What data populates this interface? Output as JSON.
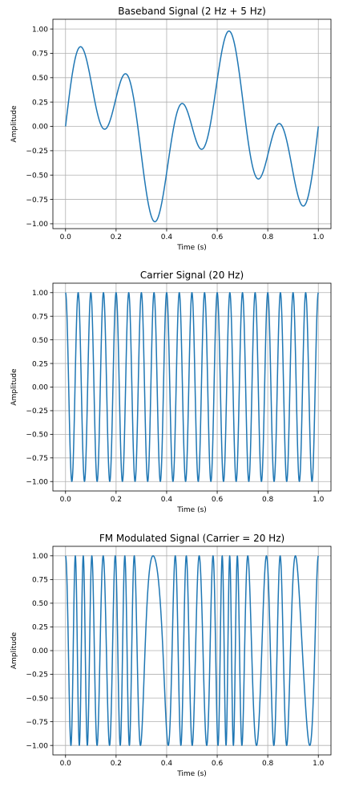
{
  "colors": {
    "series": "#1f77b4",
    "grid": "#b0b0b0"
  },
  "chart_data": [
    {
      "type": "line",
      "title": "Baseband Signal (2 Hz + 5 Hz)",
      "xlabel": "Time (s)",
      "ylabel": "Amplitude",
      "xlim": [
        -0.05,
        1.05
      ],
      "ylim": [
        -1.05,
        1.1
      ],
      "grid": true,
      "x_ticks": [
        0.0,
        0.2,
        0.4,
        0.6,
        0.8,
        1.0
      ],
      "x_tick_labels": [
        "0.0",
        "0.2",
        "0.4",
        "0.6",
        "0.8",
        "1.0"
      ],
      "y_ticks": [
        1.0,
        0.75,
        0.5,
        0.25,
        0.0,
        -0.25,
        -0.5,
        -0.75,
        -1.0
      ],
      "y_tick_labels": [
        "1.00",
        "0.75",
        "0.50",
        "0.25",
        "0.00",
        "−0.25",
        "−0.50",
        "−0.75",
        "−1.00"
      ],
      "series": [
        {
          "function": "baseband",
          "components": [
            {
              "freq_hz": 2,
              "amplitude": 0.5
            },
            {
              "freq_hz": 5,
              "amplitude": 0.5
            }
          ],
          "duration_s": 1.0
        }
      ]
    },
    {
      "type": "line",
      "title": "Carrier Signal (20 Hz)",
      "xlabel": "Time (s)",
      "ylabel": "Amplitude",
      "xlim": [
        -0.05,
        1.05
      ],
      "ylim": [
        -1.1,
        1.1
      ],
      "grid": true,
      "x_ticks": [
        0.0,
        0.2,
        0.4,
        0.6,
        0.8,
        1.0
      ],
      "x_tick_labels": [
        "0.0",
        "0.2",
        "0.4",
        "0.6",
        "0.8",
        "1.0"
      ],
      "y_ticks": [
        1.0,
        0.75,
        0.5,
        0.25,
        0.0,
        -0.25,
        -0.5,
        -0.75,
        -1.0
      ],
      "y_tick_labels": [
        "1.00",
        "0.75",
        "0.50",
        "0.25",
        "0.00",
        "−0.25",
        "−0.50",
        "−0.75",
        "−1.00"
      ],
      "series": [
        {
          "function": "carrier",
          "freq_hz": 20,
          "duration_s": 1.0
        }
      ]
    },
    {
      "type": "line",
      "title": "FM Modulated Signal (Carrier = 20 Hz)",
      "xlabel": "Time (s)",
      "ylabel": "Amplitude",
      "xlim": [
        -0.05,
        1.05
      ],
      "ylim": [
        -1.1,
        1.1
      ],
      "grid": true,
      "x_ticks": [
        0.0,
        0.2,
        0.4,
        0.6,
        0.8,
        1.0
      ],
      "x_tick_labels": [
        "0.0",
        "0.2",
        "0.4",
        "0.6",
        "0.8",
        "1.0"
      ],
      "y_ticks": [
        1.0,
        0.75,
        0.5,
        0.25,
        0.0,
        -0.25,
        -0.5,
        -0.75,
        -1.0
      ],
      "y_tick_labels": [
        "1.00",
        "0.75",
        "0.50",
        "0.25",
        "0.00",
        "−0.25",
        "−0.50",
        "−0.75",
        "−1.00"
      ],
      "series": [
        {
          "function": "fm",
          "carrier_hz": 20,
          "freq_deviation_hz": 15,
          "duration_s": 1.0
        }
      ]
    }
  ]
}
